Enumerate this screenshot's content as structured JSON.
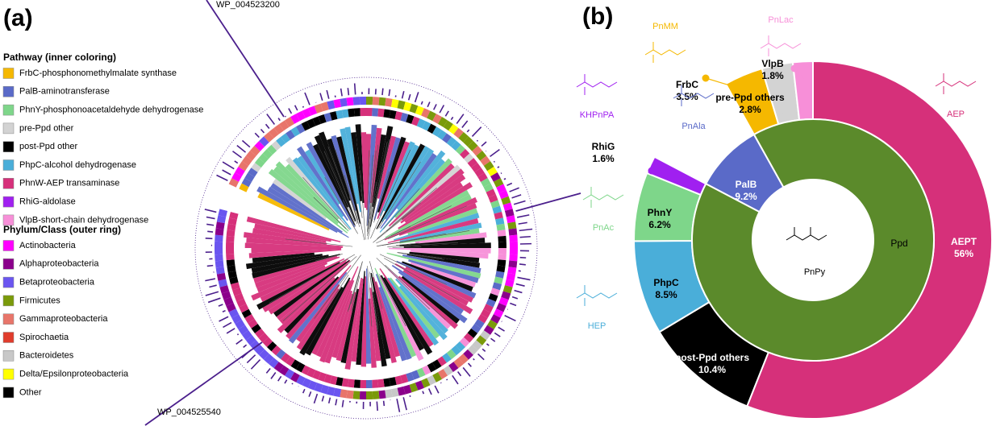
{
  "panel_a": {
    "label": "(a)",
    "legends": [
      {
        "title": "Pathway (inner coloring)",
        "items": [
          {
            "name": "FrbC-phosphonomethylmalate synthase",
            "color": "#f5b800"
          },
          {
            "name": "PalB-aminotransferase",
            "color": "#5a6ac8"
          },
          {
            "name": "PhnY-phosphonoacetaldehyde dehydrogenase",
            "color": "#7ed68a"
          },
          {
            "name": "pre-Ppd other",
            "color": "#d3d3d3"
          },
          {
            "name": "post-Ppd other",
            "color": "#000000"
          },
          {
            "name": "PhpC-alcohol dehydrogenase",
            "color": "#4aaed9"
          },
          {
            "name": "PhnW-AEP transaminase",
            "color": "#d6307a"
          },
          {
            "name": "RhiG-aldolase",
            "color": "#a020f0"
          },
          {
            "name": "VlpB-short-chain dehydrogenase",
            "color": "#f78fd8"
          }
        ]
      },
      {
        "title": "Phylum/Class (outer ring)",
        "items": [
          {
            "name": "Actinobacteria",
            "color": "#ff00ff"
          },
          {
            "name": "Alphaproteobacteria",
            "color": "#8b008b"
          },
          {
            "name": "Betaproteobacteria",
            "color": "#6a55f0"
          },
          {
            "name": "Firmicutes",
            "color": "#7a9a0a"
          },
          {
            "name": "Gammaproteobacteria",
            "color": "#e8756a"
          },
          {
            "name": "Spirochaetia",
            "color": "#e03c2c"
          },
          {
            "name": "Bacteroidetes",
            "color": "#c8c8c8"
          },
          {
            "name": "Delta/Epsilonproteobacteria",
            "color": "#ffff00"
          },
          {
            "name": "Other",
            "color": "#000000"
          }
        ]
      }
    ],
    "annotations": [
      "WP_004523200",
      "WP_004525540"
    ]
  },
  "chart_data": {
    "type": "donut",
    "label": "(b)",
    "categories": [
      "AEPT",
      "post-Ppd others",
      "PhpC",
      "PhnY",
      "RhiG",
      "PalB",
      "FrbC",
      "pre-Ppd others",
      "VlpB"
    ],
    "values": [
      56,
      10.4,
      8.5,
      6.2,
      1.6,
      9.2,
      3.5,
      2.8,
      1.8
    ],
    "value_labels": [
      "56%",
      "10.4%",
      "8.5%",
      "6.2%",
      "1.6%",
      "9.2%",
      "3.5%",
      "2.8%",
      "1.8%"
    ],
    "colors": [
      "#d6307a",
      "#000000",
      "#4aaed9",
      "#7ed68a",
      "#a020f0",
      "#5a6ac8",
      "#f5b800",
      "#d3d3d3",
      "#f78fd8"
    ],
    "levels": [
      2,
      2,
      2,
      2,
      2,
      1,
      2,
      2,
      2
    ],
    "inner": {
      "name": "Ppd",
      "value": 90.8,
      "color": "#5b8a2b"
    },
    "center_label": "PnPy",
    "compounds": [
      {
        "name": "AEP",
        "color": "#d6307a"
      },
      {
        "name": "PnMM",
        "color": "#f5b800"
      },
      {
        "name": "PnLac",
        "color": "#f78fd8"
      },
      {
        "name": "KHPnPA",
        "color": "#a020f0"
      },
      {
        "name": "PnAla",
        "color": "#5a6ac8"
      },
      {
        "name": "PnAc",
        "color": "#7ed68a"
      },
      {
        "name": "HEP",
        "color": "#4aaed9"
      }
    ]
  }
}
